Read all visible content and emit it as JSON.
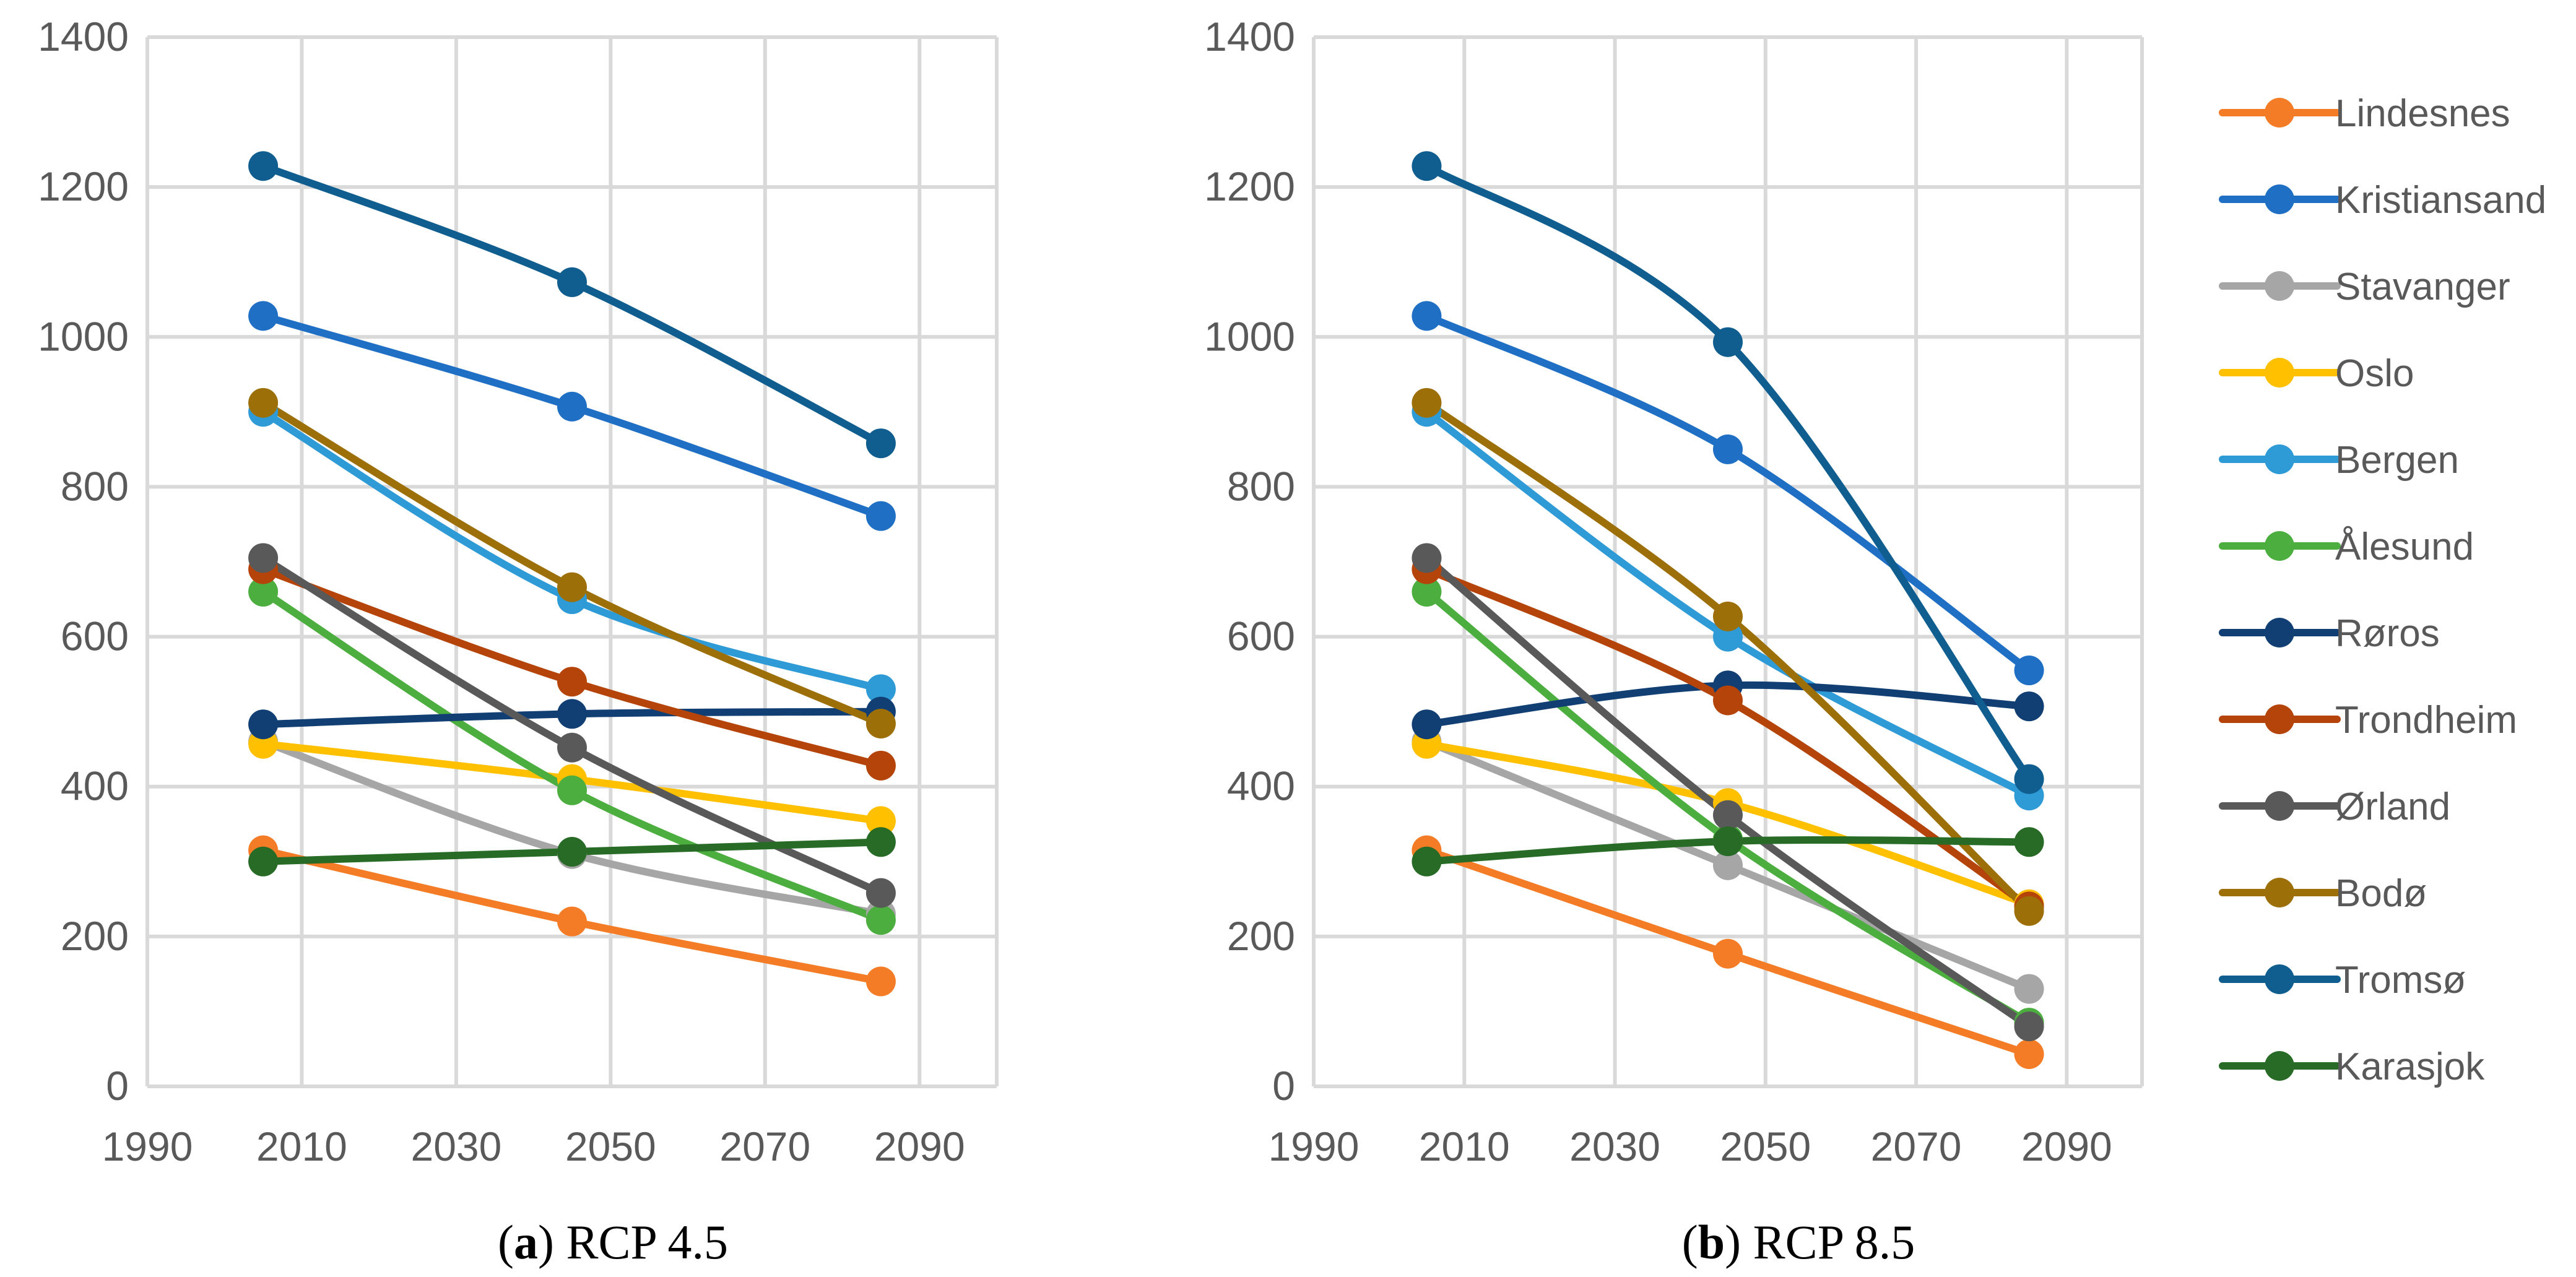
{
  "chart_data": [
    {
      "type": "line",
      "caption_label": "a",
      "caption_text": "RCP 4.5",
      "x": [
        2005,
        2045,
        2085
      ],
      "xlim": [
        1990,
        2100
      ],
      "ylim": [
        0,
        1400
      ],
      "xticks": [
        "1990",
        "2010",
        "2030",
        "2050",
        "2070",
        "2090"
      ],
      "yticks": [
        "0",
        "200",
        "400",
        "600",
        "800",
        "1000",
        "1200",
        "1400"
      ],
      "series": [
        {
          "name": "Lindesnes",
          "values": [
            315,
            220,
            140
          ]
        },
        {
          "name": "Kristiansand",
          "values": [
            1028,
            907,
            761
          ]
        },
        {
          "name": "Stavanger",
          "values": [
            460,
            310,
            230
          ]
        },
        {
          "name": "Oslo",
          "values": [
            457,
            410,
            354
          ]
        },
        {
          "name": "Bergen",
          "values": [
            900,
            650,
            530
          ]
        },
        {
          "name": "Ålesund",
          "values": [
            660,
            395,
            222
          ]
        },
        {
          "name": "Røros",
          "values": [
            483,
            497,
            500
          ]
        },
        {
          "name": "Trondheim",
          "values": [
            690,
            540,
            428
          ]
        },
        {
          "name": "Ørland",
          "values": [
            705,
            452,
            258
          ]
        },
        {
          "name": "Bodø",
          "values": [
            912,
            666,
            484
          ]
        },
        {
          "name": "Tromsø",
          "values": [
            1228,
            1073,
            858
          ]
        },
        {
          "name": "Karasjok",
          "values": [
            300,
            313,
            326
          ]
        }
      ]
    },
    {
      "type": "line",
      "caption_label": "b",
      "caption_text": "RCP 8.5",
      "x": [
        2005,
        2045,
        2085
      ],
      "xlim": [
        1990,
        2100
      ],
      "ylim": [
        0,
        1400
      ],
      "xticks": [
        "1990",
        "2010",
        "2030",
        "2050",
        "2070",
        "2090"
      ],
      "yticks": [
        "0",
        "200",
        "400",
        "600",
        "800",
        "1000",
        "1200",
        "1400"
      ],
      "series": [
        {
          "name": "Lindesnes",
          "values": [
            315,
            177,
            43
          ]
        },
        {
          "name": "Kristiansand",
          "values": [
            1028,
            850,
            555
          ]
        },
        {
          "name": "Stavanger",
          "values": [
            460,
            295,
            130
          ]
        },
        {
          "name": "Oslo",
          "values": [
            457,
            378,
            243
          ]
        },
        {
          "name": "Bergen",
          "values": [
            900,
            600,
            388
          ]
        },
        {
          "name": "Ålesund",
          "values": [
            660,
            330,
            85
          ]
        },
        {
          "name": "Røros",
          "values": [
            483,
            535,
            507
          ]
        },
        {
          "name": "Trondheim",
          "values": [
            690,
            515,
            240
          ]
        },
        {
          "name": "Ørland",
          "values": [
            705,
            362,
            80
          ]
        },
        {
          "name": "Bodø",
          "values": [
            912,
            627,
            234
          ]
        },
        {
          "name": "Tromsø",
          "values": [
            1228,
            993,
            410
          ]
        },
        {
          "name": "Karasjok",
          "values": [
            300,
            327,
            326
          ]
        }
      ]
    }
  ],
  "legend": [
    {
      "name": "Lindesnes",
      "color": "#F47C26"
    },
    {
      "name": "Kristiansand",
      "color": "#1F6FC5"
    },
    {
      "name": "Stavanger",
      "color": "#A6A6A6"
    },
    {
      "name": "Oslo",
      "color": "#FFC000"
    },
    {
      "name": "Bergen",
      "color": "#2E9AD6"
    },
    {
      "name": "Ålesund",
      "color": "#4CAE3F"
    },
    {
      "name": "Røros",
      "color": "#113E73"
    },
    {
      "name": "Trondheim",
      "color": "#B5440A"
    },
    {
      "name": "Ørland",
      "color": "#595959"
    },
    {
      "name": "Bodø",
      "color": "#9C6F09"
    },
    {
      "name": "Tromsø",
      "color": "#0F5E8F"
    },
    {
      "name": "Karasjok",
      "color": "#276B26"
    }
  ]
}
